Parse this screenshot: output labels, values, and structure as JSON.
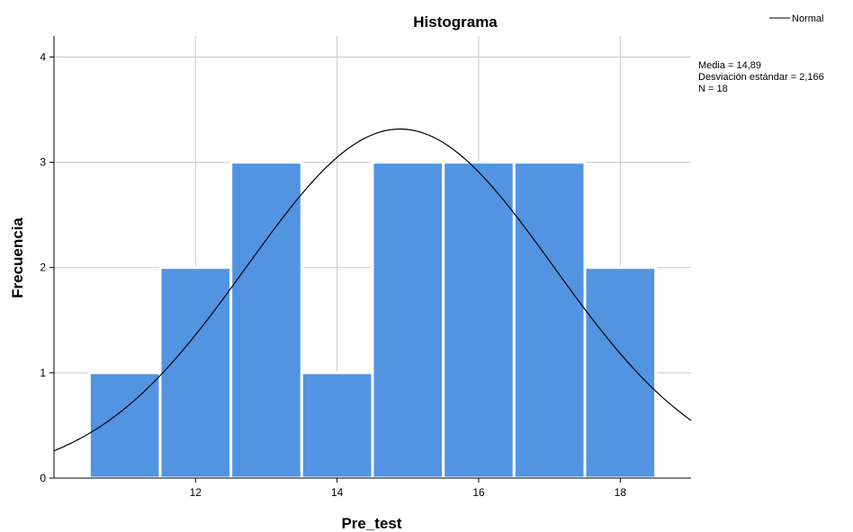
{
  "chart_data": {
    "type": "bar",
    "title": "Histograma",
    "xlabel": "Pre_test",
    "ylabel": "Frecuencia",
    "bins": [
      {
        "from": 10.5,
        "to": 11.5,
        "count": 1
      },
      {
        "from": 11.5,
        "to": 12.5,
        "count": 2
      },
      {
        "from": 12.5,
        "to": 13.5,
        "count": 3
      },
      {
        "from": 13.5,
        "to": 14.5,
        "count": 1
      },
      {
        "from": 14.5,
        "to": 15.5,
        "count": 3
      },
      {
        "from": 15.5,
        "to": 16.5,
        "count": 3
      },
      {
        "from": 16.5,
        "to": 17.5,
        "count": 3
      },
      {
        "from": 17.5,
        "to": 18.5,
        "count": 2
      }
    ],
    "xlim": [
      10.0,
      19.0
    ],
    "ylim": [
      0,
      4.2
    ],
    "x_ticks": [
      "12",
      "14",
      "16",
      "18"
    ],
    "x_tick_values": [
      12,
      14,
      16,
      18
    ],
    "y_ticks": [
      "0",
      "1",
      "2",
      "3",
      "4"
    ],
    "y_tick_values": [
      0,
      1,
      2,
      3,
      4
    ],
    "grid": true,
    "bar_color": "#5294e2",
    "curve_color": "#000000",
    "normal_curve": {
      "mean": 14.89,
      "sd": 2.166,
      "n": 18,
      "bin_width": 1
    },
    "legend": {
      "label": "Normal",
      "position": "top-right"
    },
    "stats": [
      "Media = 14,89",
      "Desviación estándar = 2,166",
      "N = 18"
    ]
  }
}
